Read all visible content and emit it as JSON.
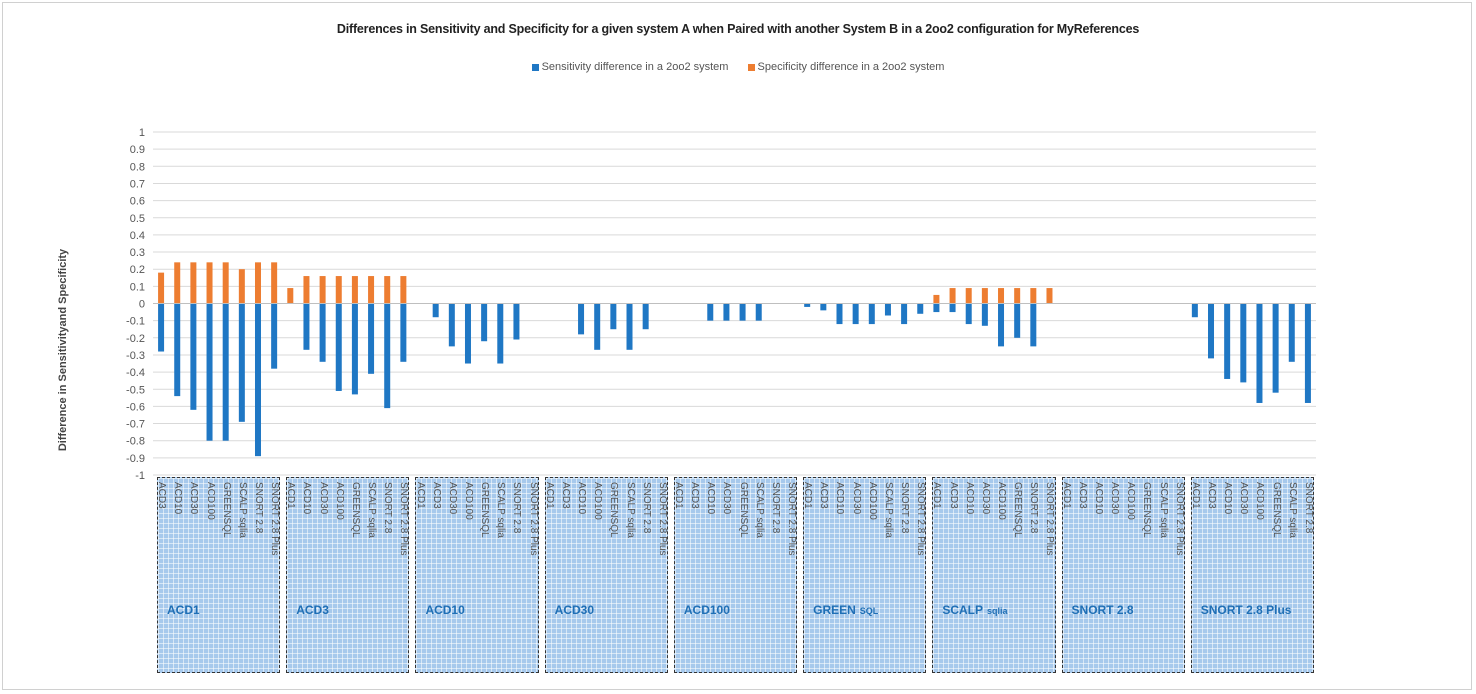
{
  "chart_data": {
    "type": "bar",
    "title": "Differences in Sensitivity and Specificity for a given system A when Paired with another System B in a 2oo2 configuration for MyReferences",
    "ylabel": "Difference in  Sensitivityand Specificity",
    "xlabel": "",
    "ylim": [
      -1,
      1
    ],
    "ytick_step": 0.1,
    "grid": true,
    "legend_position": "top",
    "series_colors": {
      "sensitivity": "#1f77c4",
      "specificity": "#ed7d31"
    },
    "series": [
      {
        "key": "sensitivity",
        "name": "Sensitivity difference in a 2oo2 system"
      },
      {
        "key": "specificity",
        "name": "Specificity difference in a 2oo2 system"
      }
    ],
    "groups": [
      {
        "label": "ACD1",
        "label_sub": "",
        "categories": [
          "ACD3",
          "ACD10",
          "ACD30",
          "ACD100",
          "GREENSQL",
          "SCALP sqlia",
          "SNORT 2.8",
          "SNORT 2.8 Plus"
        ],
        "sensitivity": [
          -0.28,
          -0.54,
          -0.62,
          -0.8,
          -0.8,
          -0.69,
          -0.89,
          -0.38
        ],
        "specificity": [
          0.18,
          0.24,
          0.24,
          0.24,
          0.24,
          0.2,
          0.24,
          0.24
        ]
      },
      {
        "label": "ACD3",
        "label_sub": "",
        "categories": [
          "ACD1",
          "ACD10",
          "ACD30",
          "ACD100",
          "GREENSQL",
          "SCALP sqlia",
          "SNORT 2.8",
          "SNORT 2.8 Plus"
        ],
        "sensitivity": [
          0,
          -0.27,
          -0.34,
          -0.51,
          -0.53,
          -0.41,
          -0.61,
          -0.34
        ],
        "specificity": [
          0.09,
          0.16,
          0.16,
          0.16,
          0.16,
          0.16,
          0.16,
          0.16
        ]
      },
      {
        "label": "ACD10",
        "label_sub": "",
        "categories": [
          "ACD1",
          "ACD3",
          "ACD30",
          "ACD100",
          "GREENSQL",
          "SCALP sqlia",
          "SNORT 2.8",
          "SNORT 2.8 Plus"
        ],
        "sensitivity": [
          0,
          -0.08,
          -0.25,
          -0.35,
          -0.22,
          -0.35,
          -0.21,
          0
        ],
        "specificity": [
          0,
          0,
          0,
          0,
          0,
          0,
          0,
          0
        ]
      },
      {
        "label": "ACD30",
        "label_sub": "",
        "categories": [
          "ACD1",
          "ACD3",
          "ACD10",
          "ACD100",
          "GREENSQL",
          "SCALP sqlia",
          "SNORT 2.8",
          "SNORT 2.8 Plus"
        ],
        "sensitivity": [
          0,
          0,
          -0.18,
          -0.27,
          -0.15,
          -0.27,
          -0.15,
          0
        ],
        "specificity": [
          0,
          0,
          0,
          0,
          0,
          0,
          0,
          0
        ]
      },
      {
        "label": "ACD100",
        "label_sub": "",
        "categories": [
          "ACD1",
          "ACD3",
          "ACD10",
          "ACD30",
          "GREENSQL",
          "SCALP sqlia",
          "SNORT 2.8",
          "SNORT 2.8 Plus"
        ],
        "sensitivity": [
          0,
          0,
          -0.1,
          -0.1,
          -0.1,
          -0.1,
          0,
          0
        ],
        "specificity": [
          0,
          0,
          0,
          0,
          0,
          0,
          0,
          0
        ]
      },
      {
        "label": "GREEN",
        "label_sub": "SQL",
        "categories": [
          "ACD1",
          "ACD3",
          "ACD10",
          "ACD30",
          "ACD100",
          "SCALP sqlia",
          "SNORT 2.8",
          "SNORT 2.8 Plus"
        ],
        "sensitivity": [
          -0.02,
          -0.04,
          -0.12,
          -0.12,
          -0.12,
          -0.07,
          -0.12,
          -0.06
        ],
        "specificity": [
          0,
          0,
          0,
          0,
          0,
          0,
          0,
          0
        ]
      },
      {
        "label": "SCALP",
        "label_sub": "sqlia",
        "categories": [
          "ACD1",
          "ACD3",
          "ACD10",
          "ACD30",
          "ACD100",
          "GREENSQL",
          "SNORT 2.8",
          "SNORT 2.8 Plus"
        ],
        "sensitivity": [
          -0.05,
          -0.05,
          -0.12,
          -0.13,
          -0.25,
          -0.2,
          -0.25,
          0
        ],
        "specificity": [
          0.05,
          0.09,
          0.09,
          0.09,
          0.09,
          0.09,
          0.09,
          0.09
        ]
      },
      {
        "label": "SNORT 2.8",
        "label_sub": "",
        "categories": [
          "ACD1",
          "ACD3",
          "ACD10",
          "ACD30",
          "ACD100",
          "GREENSQL",
          "SCALP sqlia",
          "SNORT 2.8 Plus"
        ],
        "sensitivity": [
          0,
          0,
          0,
          0,
          0,
          0,
          0,
          0
        ],
        "specificity": [
          0,
          0,
          0,
          0,
          0,
          0,
          0,
          0
        ]
      },
      {
        "label": "SNORT 2.8 Plus",
        "label_sub": "",
        "categories": [
          "ACD1",
          "ACD3",
          "ACD10",
          "ACD30",
          "ACD100",
          "GREENSQL",
          "SCALP sqlia",
          "SNORT 2.8"
        ],
        "sensitivity": [
          -0.08,
          -0.32,
          -0.44,
          -0.46,
          -0.58,
          -0.52,
          -0.34,
          -0.58
        ],
        "specificity": [
          0,
          0,
          0,
          0,
          0,
          0,
          0,
          0
        ]
      }
    ]
  }
}
